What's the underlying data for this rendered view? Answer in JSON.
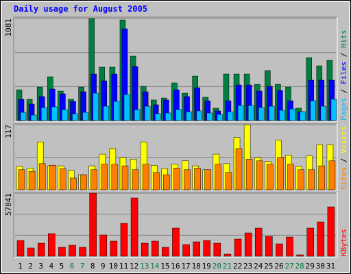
{
  "title": "Daily usage for August 2005",
  "legend_separator": " / ",
  "chart_data": [
    {
      "type": "bar",
      "ylim": [
        0,
        1081
      ],
      "yticks": [
        1081
      ],
      "series": [
        {
          "name": "Hits",
          "color": "#008040",
          "values": [
            326,
            225,
            355,
            464,
            312,
            225,
            355,
            1081,
            566,
            566,
            1066,
            682,
            363,
            218,
            239,
            399,
            290,
            471,
            247,
            131,
            493,
            493,
            493,
            384,
            530,
            384,
            355,
            131,
            667,
            580,
            638
          ]
        },
        {
          "name": "Files",
          "color": "#0000ff",
          "values": [
            225,
            174,
            254,
            334,
            283,
            203,
            305,
            493,
            421,
            493,
            972,
            573,
            305,
            167,
            218,
            326,
            254,
            348,
            210,
            102,
            210,
            377,
            377,
            312,
            363,
            319,
            210,
            94,
            428,
            428,
            428
          ]
        },
        {
          "name": "Pages",
          "color": "#00c0ff",
          "values": [
            87,
            58,
            138,
            145,
            116,
            73,
            87,
            290,
            152,
            203,
            276,
            116,
            152,
            73,
            80,
            116,
            94,
            102,
            80,
            65,
            94,
            160,
            160,
            138,
            152,
            109,
            123,
            94,
            210,
            152,
            225
          ]
        }
      ]
    },
    {
      "type": "bar",
      "ylim": [
        0,
        117
      ],
      "yticks": [
        117
      ],
      "series": [
        {
          "name": "Visits",
          "color": "#ffff00",
          "values": [
            42,
            39,
            86,
            43,
            43,
            35,
            27,
            43,
            64,
            74,
            58,
            55,
            86,
            44,
            38,
            46,
            52,
            43,
            36,
            64,
            47,
            94,
            117,
            58,
            51,
            89,
            62,
            42,
            61,
            81,
            81
          ]
        },
        {
          "name": "Sites",
          "color": "#ff8000",
          "values": [
            36,
            33,
            47,
            44,
            38,
            21,
            27,
            36,
            46,
            46,
            43,
            36,
            46,
            31,
            27,
            39,
            36,
            39,
            36,
            46,
            31,
            74,
            55,
            52,
            46,
            58,
            46,
            36,
            36,
            43,
            52
          ]
        }
      ]
    },
    {
      "type": "bar",
      "ylim": [
        0,
        57041
      ],
      "yticks": [
        57041
      ],
      "categories": [
        "1",
        "2",
        "3",
        "4",
        "5",
        "6",
        "7",
        "8",
        "9",
        "10",
        "11",
        "12",
        "13",
        "14",
        "15",
        "16",
        "17",
        "18",
        "19",
        "20",
        "21",
        "22",
        "23",
        "24",
        "25",
        "26",
        "27",
        "28",
        "29",
        "30",
        "31"
      ],
      "category_colors": [
        "#000000",
        "#000000",
        "#000000",
        "#000000",
        "#000000",
        "#008040",
        "#008040",
        "#000000",
        "#000000",
        "#000000",
        "#000000",
        "#000000",
        "#008040",
        "#008040",
        "#000000",
        "#000000",
        "#000000",
        "#000000",
        "#000000",
        "#008040",
        "#008040",
        "#000000",
        "#000000",
        "#000000",
        "#000000",
        "#000000",
        "#008040",
        "#008040",
        "#000000",
        "#000000",
        "#000000"
      ],
      "series": [
        {
          "name": "KBytes",
          "color": "#ff0000",
          "values": [
            14260,
            7440,
            11780,
            20460,
            8060,
            9920,
            8060,
            57041,
            19220,
            13640,
            29760,
            52700,
            11780,
            13640,
            8060,
            25420,
            10540,
            13020,
            14260,
            11780,
            1860,
            15500,
            21080,
            25420,
            17980,
            11160,
            17360,
            1240,
            25420,
            31000,
            44640
          ]
        }
      ]
    }
  ]
}
